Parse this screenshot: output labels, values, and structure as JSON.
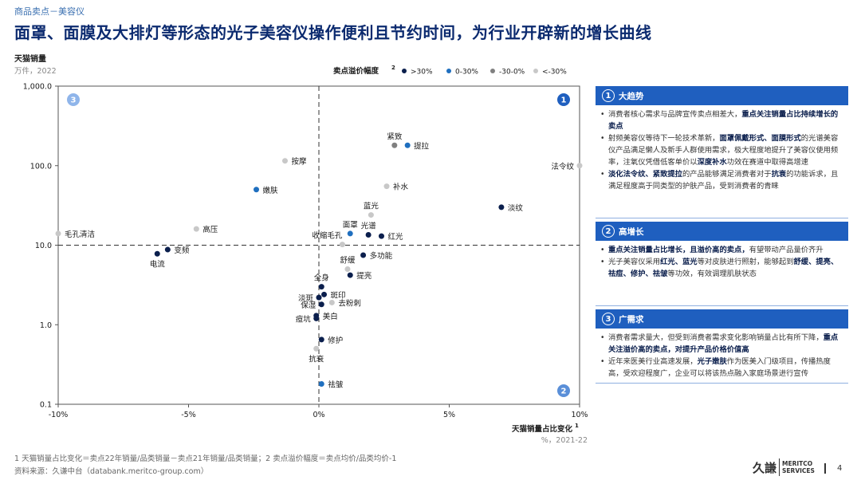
{
  "breadcrumb": "商品卖点－美容仪",
  "title": "面罩、面膜及大排灯等形态的光子美容仪操作便利且节约时间，为行业开辟新的增长曲线",
  "chart_data": {
    "type": "scatter",
    "ylabel": "天猫销量",
    "ylabel_sub": "万件，2022",
    "xlabel": "天猫销量占比变化",
    "xlabel_sup": "1",
    "xlabel_sub": "%，2021-22",
    "x_scale": "linear",
    "y_scale": "log",
    "xlim": [
      -10,
      10
    ],
    "ylim": [
      0.1,
      1000
    ],
    "x_ticks": [
      -10,
      -5,
      0,
      5,
      10
    ],
    "x_tick_labels": [
      "-10%",
      "-5%",
      "0%",
      "5%",
      "10%"
    ],
    "y_ticks": [
      0.1,
      1,
      10,
      100,
      1000
    ],
    "y_tick_labels": [
      "0.1",
      "1.0",
      "10.0",
      "100.0",
      "1,000.0"
    ],
    "divider_x": 0,
    "divider_y": 10,
    "legend_title": "卖点溢价幅度",
    "legend_title_sup": "2",
    "legend": [
      {
        "label": ">30%",
        "color": "#0b1f4d"
      },
      {
        "label": "0-30%",
        "color": "#1f6fbf"
      },
      {
        "label": "-30-0%",
        "color": "#808080"
      },
      {
        "label": "<-30%",
        "color": "#c8c8c8"
      }
    ],
    "quadrant_labels": [
      {
        "label": "1",
        "position": "top-right",
        "color": "#1f5fbf"
      },
      {
        "label": "2",
        "position": "bottom-right",
        "color": "#5a8fd8"
      },
      {
        "label": "3",
        "position": "top-left",
        "color": "#8fb5ea"
      }
    ],
    "points": [
      {
        "label": "紧致",
        "x": 2.9,
        "y": 180,
        "color": "#808080",
        "lab": "above"
      },
      {
        "label": "提拉",
        "x": 3.4,
        "y": 180,
        "color": "#1f6fbf",
        "lab": "right"
      },
      {
        "label": "按摩",
        "x": -1.3,
        "y": 115,
        "color": "#c8c8c8",
        "lab": "right"
      },
      {
        "label": "法令纹",
        "x": 10.0,
        "y": 100,
        "color": "#c8c8c8",
        "lab": "left"
      },
      {
        "label": "嫩肤",
        "x": -2.4,
        "y": 50,
        "color": "#1f6fbf",
        "lab": "right"
      },
      {
        "label": "补水",
        "x": 2.6,
        "y": 55,
        "color": "#c8c8c8",
        "lab": "right"
      },
      {
        "label": "淡纹",
        "x": 7.0,
        "y": 30,
        "color": "#0b1f4d",
        "lab": "right"
      },
      {
        "label": "蓝光",
        "x": 2.0,
        "y": 24,
        "color": "#c8c8c8",
        "lab": "above"
      },
      {
        "label": "光谱",
        "x": 1.9,
        "y": 13.5,
        "color": "#0b1f4d",
        "lab": "above"
      },
      {
        "label": "红光",
        "x": 2.4,
        "y": 13,
        "color": "#0b1f4d",
        "lab": "right"
      },
      {
        "label": "面罩",
        "x": 1.2,
        "y": 14,
        "color": "#1f6fbf",
        "lab": "above"
      },
      {
        "label": "收缩毛孔",
        "x": 0.9,
        "y": 10.2,
        "color": "#c8c8c8",
        "lab": "above-left"
      },
      {
        "label": "高压",
        "x": -4.7,
        "y": 16,
        "color": "#c8c8c8",
        "lab": "right"
      },
      {
        "label": "毛孔清洁",
        "x": -10.0,
        "y": 14,
        "color": "#c8c8c8",
        "lab": "right"
      },
      {
        "label": "变频",
        "x": -5.8,
        "y": 8.8,
        "color": "#0b1f4d",
        "lab": "right"
      },
      {
        "label": "电流",
        "x": -6.2,
        "y": 7.8,
        "color": "#0b1f4d",
        "lab": "below"
      },
      {
        "label": "多功能",
        "x": 1.7,
        "y": 7.5,
        "color": "#0b1f4d",
        "lab": "right"
      },
      {
        "label": "舒缓",
        "x": 1.1,
        "y": 5.0,
        "color": "#c8c8c8",
        "lab": "above"
      },
      {
        "label": "提亮",
        "x": 1.2,
        "y": 4.2,
        "color": "#0b1f4d",
        "lab": "right"
      },
      {
        "label": "全身",
        "x": 0.1,
        "y": 3.0,
        "color": "#0b1f4d",
        "lab": "above"
      },
      {
        "label": "斑印",
        "x": 0.2,
        "y": 2.4,
        "color": "#0b1f4d",
        "lab": "right"
      },
      {
        "label": "淡斑",
        "x": 0.0,
        "y": 2.2,
        "color": "#0b1f4d",
        "lab": "left"
      },
      {
        "label": "去粉刺",
        "x": 0.5,
        "y": 1.9,
        "color": "#c8c8c8",
        "lab": "right"
      },
      {
        "label": "保湿",
        "x": 0.1,
        "y": 1.8,
        "color": "#0b1f4d",
        "lab": "left"
      },
      {
        "label": "美白",
        "x": -0.1,
        "y": 1.3,
        "color": "#0b1f4d",
        "lab": "right"
      },
      {
        "label": "痘坑",
        "x": -0.1,
        "y": 1.2,
        "color": "#0b1f4d",
        "lab": "left"
      },
      {
        "label": "修护",
        "x": 0.1,
        "y": 0.65,
        "color": "#0b1f4d",
        "lab": "right"
      },
      {
        "label": "抗衰",
        "x": -0.1,
        "y": 0.5,
        "color": "#c8c8c8",
        "lab": "below"
      },
      {
        "label": "祛皱",
        "x": 0.1,
        "y": 0.18,
        "color": "#1f6fbf",
        "lab": "right"
      }
    ]
  },
  "panel": {
    "sections": [
      {
        "num": "1",
        "title": "大趋势",
        "bullets": [
          [
            {
              "t": "消费者核心需求与品牌宣传卖点相差大，"
            },
            {
              "t": "重点关注销量占比持续增长的卖点",
              "b": true
            }
          ],
          [
            {
              "t": "射频美容仪等待下一轮技术革新，"
            },
            {
              "t": "面罩佩戴形式、面膜形式",
              "b": true
            },
            {
              "t": "的光谱美容仪产品满足懒人及新手人群使用需求，极大程度地提升了美容仪使用频率，注氧仪凭借低客单价以"
            },
            {
              "t": "深度补水",
              "b": true
            },
            {
              "t": "功效在赛道中取得高增速"
            }
          ],
          [
            {
              "t": "淡化法令纹、紧致提拉",
              "b": true
            },
            {
              "t": "的产品能够满足消费者对于"
            },
            {
              "t": "抗衰",
              "b": true
            },
            {
              "t": "的功能诉求，且满足程度高于同类型的护肤产品，受到消费者的青睐"
            }
          ]
        ]
      },
      {
        "num": "2",
        "title": "高增长",
        "bullets": [
          [
            {
              "t": "重点关注销量占比增长，且溢价高的卖点，",
              "b": true
            },
            {
              "t": "有望带动产品量价齐升"
            }
          ],
          [
            {
              "t": "光子美容仪采用"
            },
            {
              "t": "红光、蓝光",
              "b": true
            },
            {
              "t": "等对皮肤进行照射，能够起到"
            },
            {
              "t": "舒缓、提亮、祛痘、修护、祛皱",
              "b": true
            },
            {
              "t": "等功效，有效调理肌肤状态"
            }
          ]
        ]
      },
      {
        "num": "3",
        "title": "广需求",
        "bullets": [
          [
            {
              "t": "消费者需求量大，但受到消费者需求变化影响销量占比有所下降，"
            },
            {
              "t": "重点关注溢价高的卖点，对提升产品价格价值高",
              "b": true
            }
          ],
          [
            {
              "t": "近年来医美行业高速发展，"
            },
            {
              "t": "光子嫩肤",
              "b": true
            },
            {
              "t": "作为医美入门级项目，传播热度高，受欢迎程度广，企业可以将该热点融入家庭场景进行宣传"
            }
          ]
        ]
      }
    ]
  },
  "footnote": "1  天猫销量占比变化＝卖点22年销量/品类销量－卖点21年销量/品类销量；2  卖点溢价幅度＝卖点均价/品类均价-1",
  "source": "资料来源：久谦中台（databank.meritco-group.com）",
  "logo": {
    "cn": "久謙",
    "en1": "MERITCO",
    "en2": "SERVICES"
  },
  "page_number": "4"
}
